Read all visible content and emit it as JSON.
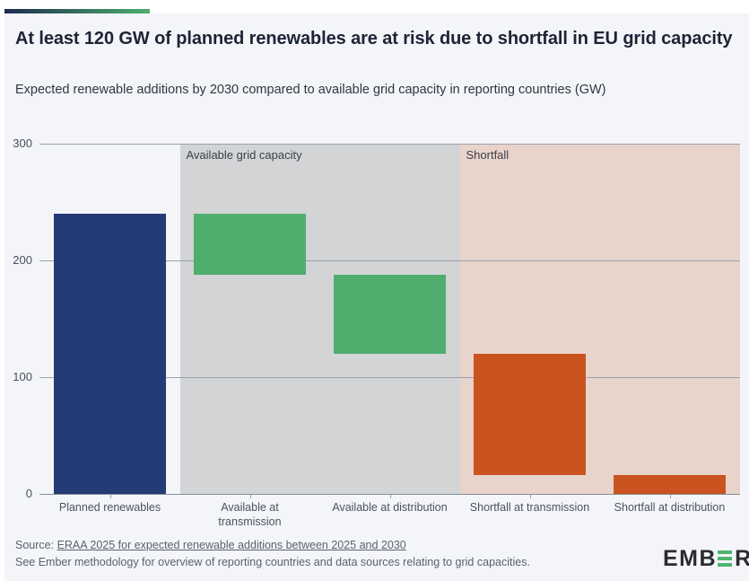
{
  "header": {
    "title": "At least 120 GW of planned renewables are at risk due to shortfall in EU grid capacity",
    "subtitle": "Expected renewable additions by 2030 compared to available grid capacity in reporting countries (GW)"
  },
  "chart_data": {
    "type": "bar",
    "subtype": "waterfall",
    "title": "At least 120 GW of planned renewables are at risk due to shortfall in EU grid capacity",
    "unit": "GW",
    "ylim": [
      0,
      300
    ],
    "yticks": [
      300,
      200,
      100,
      0
    ],
    "grid": "horizontal",
    "categories": [
      "Planned renewables",
      "Available at transmission",
      "Available at distribution",
      "Shortfall at transmission",
      "Shortfall at distribution"
    ],
    "category_label_lines": [
      [
        "Planned renewables"
      ],
      [
        "Available at",
        "transmission"
      ],
      [
        "Available at distribution"
      ],
      [
        "Shortfall at transmission"
      ],
      [
        "Shortfall at distribution"
      ]
    ],
    "bars": [
      {
        "category": "Planned renewables",
        "from": 0,
        "to": 240,
        "color": "#253b76"
      },
      {
        "category": "Available at transmission",
        "from": 188,
        "to": 240,
        "color": "#4fae6e"
      },
      {
        "category": "Available at distribution",
        "from": 120,
        "to": 188,
        "color": "#4fae6e"
      },
      {
        "category": "Shortfall at transmission",
        "from": 16,
        "to": 120,
        "color": "#c95420"
      },
      {
        "category": "Shortfall at distribution",
        "from": 0,
        "to": 16,
        "color": "#c95420"
      }
    ],
    "regions": [
      {
        "label": "Available grid capacity",
        "from_index": 1,
        "to_index": 2,
        "color": "#d3d4d6"
      },
      {
        "label": "Shortfall",
        "from_index": 3,
        "to_index": 4,
        "color": "#e9d4cc"
      }
    ]
  },
  "footer": {
    "source_prefix": "Source: ",
    "source_link": "ERAA 2025 for expected renewable additions between 2025 and 2030",
    "methodology_note": "See Ember methodology for overview of reporting countries and data sources relating to grid capacities."
  },
  "logo": {
    "part1": "EMB",
    "part2": "R",
    "green": "#4db56f"
  },
  "theme": {
    "accent_navy": "#1d2b4e",
    "accent_green": "#4caf6e",
    "card_bg": "#f4f5f8",
    "gridline": "#9aa0aa",
    "axis_line": "#878e99"
  }
}
